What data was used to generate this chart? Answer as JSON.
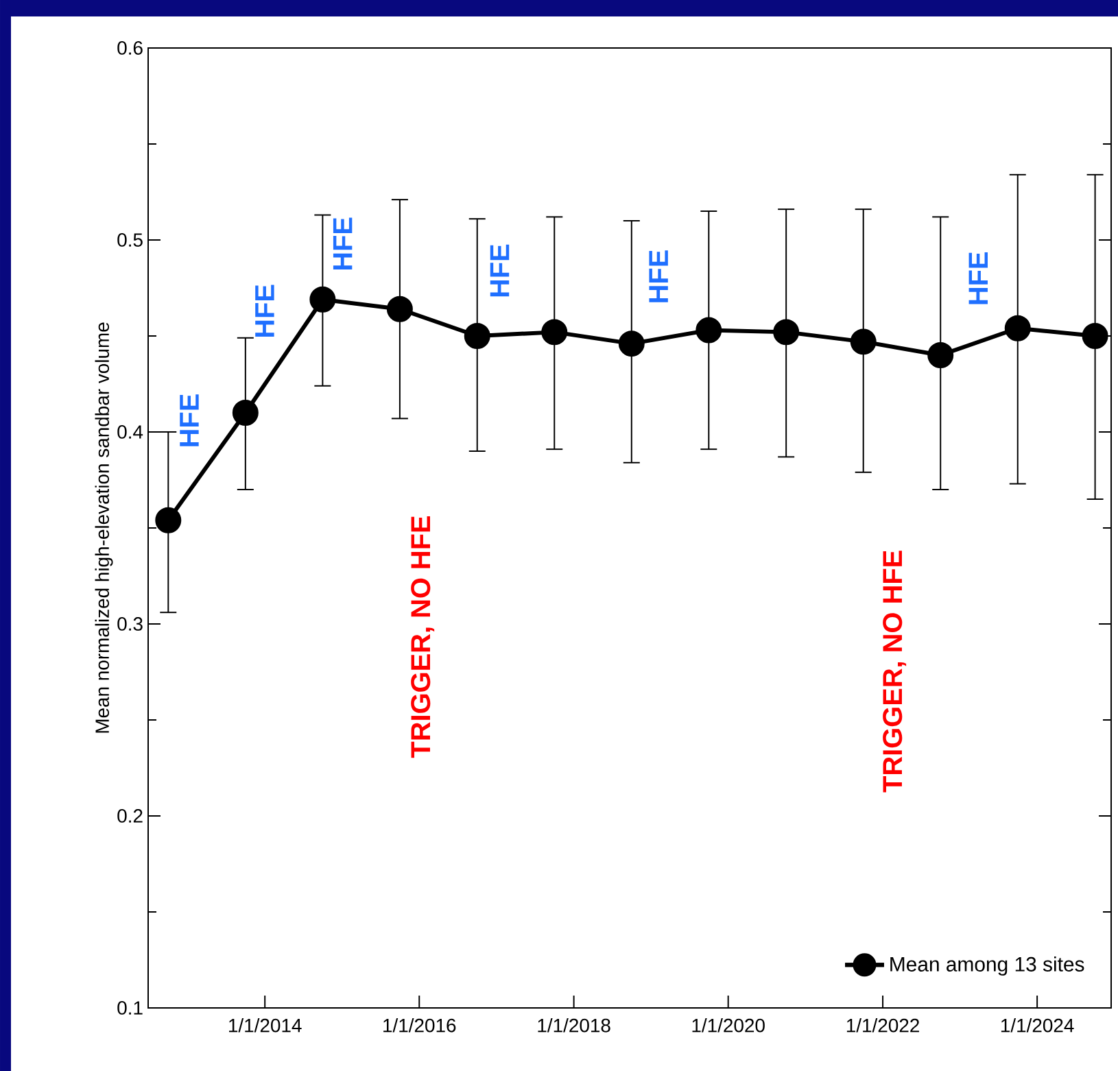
{
  "chart_data": {
    "type": "line",
    "ylabel": "Mean normalized high-elevation sandbar volume",
    "x": [
      "2012-10-01",
      "2013-10-01",
      "2014-10-01",
      "2015-10-01",
      "2016-10-01",
      "2017-10-01",
      "2018-10-01",
      "2019-10-01",
      "2020-10-01",
      "2021-10-01",
      "2022-10-01",
      "2023-10-01",
      "2024-10-01"
    ],
    "series": [
      {
        "name": "Mean among 13 sites",
        "color": "#000000",
        "values": [
          0.354,
          0.41,
          0.469,
          0.464,
          0.45,
          0.452,
          0.446,
          0.453,
          0.452,
          0.447,
          0.44,
          0.454,
          0.45
        ],
        "errors": [
          [
            0.306,
            0.4
          ],
          [
            0.37,
            0.449
          ],
          [
            0.424,
            0.513
          ],
          [
            0.407,
            0.521
          ],
          [
            0.39,
            0.511
          ],
          [
            0.391,
            0.512
          ],
          [
            0.384,
            0.51
          ],
          [
            0.391,
            0.515
          ],
          [
            0.387,
            0.516
          ],
          [
            0.379,
            0.516
          ],
          [
            0.37,
            0.512
          ],
          [
            0.373,
            0.534
          ],
          [
            0.365,
            0.534
          ]
        ]
      }
    ],
    "xlim": [
      "2012-06-28",
      "2024-12-16"
    ],
    "xticks": [
      {
        "value": "2014-01-01",
        "label": "1/1/2014"
      },
      {
        "value": "2016-01-01",
        "label": "1/1/2016"
      },
      {
        "value": "2018-01-01",
        "label": "1/1/2018"
      },
      {
        "value": "2020-01-01",
        "label": "1/1/2020"
      },
      {
        "value": "2022-01-01",
        "label": "1/1/2022"
      },
      {
        "value": "2024-01-01",
        "label": "1/1/2024"
      }
    ],
    "ylim": [
      0.1,
      0.6
    ],
    "yticks": [
      0.1,
      0.2,
      0.3,
      0.4,
      0.5,
      0.6
    ],
    "annotations": [
      "HFE",
      "HFE",
      "HFE",
      "TRIGGER, NO HFE",
      "HFE",
      "HFE",
      "TRIGGER, NO HFE",
      "HFE"
    ],
    "legend": "bottom right",
    "marker": "circle",
    "line_style": "solid"
  }
}
